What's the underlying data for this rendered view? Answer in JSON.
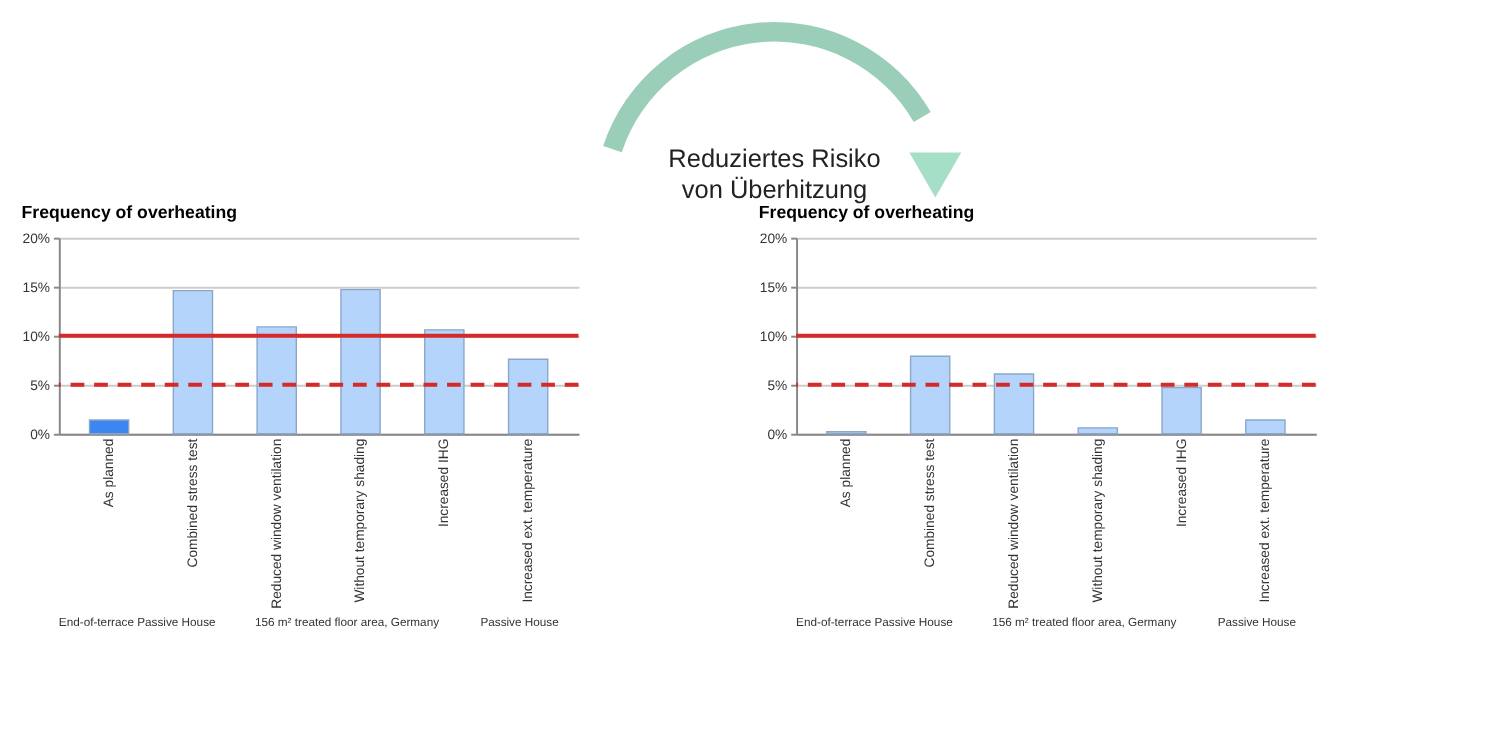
{
  "chart_data": [
    {
      "type": "other",
      "annotations": [
        "Reduziertes Risiko\nvon Überhitzung"
      ]
    },
    {
      "type": "bar",
      "title": "Frequency of overheating",
      "categories": [
        "As planned",
        "Combined stress test",
        "Reduced window ventilation",
        "Without temporary shading",
        "Increased IHG",
        "Increased ext. temperature",
        null
      ],
      "values": [
        1.4,
        14.6,
        10.9,
        14.7,
        10.6,
        7.6,
        null
      ],
      "colors": [
        "#3d85f0",
        "#b4d4fb",
        "#b4d4fb",
        "#b4d4fb",
        "#b4d4fb",
        "#b4d4fb",
        "#b4d4fb"
      ],
      "ylim": [
        0,
        20
      ],
      "yticks": [
        {
          "value": 0,
          "label": "0%"
        },
        {
          "value": 5,
          "label": "5%"
        },
        {
          "value": 10,
          "label": "10%"
        },
        {
          "value": 15,
          "label": "15%"
        },
        {
          "value": 20,
          "label": "20%"
        }
      ],
      "grid": "y",
      "ref_lines": [
        {
          "axis": "y",
          "value": 10,
          "color": "#d42a2a",
          "line_style": "solid"
        },
        {
          "axis": "y",
          "value": 5,
          "color": "#d42a2a",
          "line_style": "dashed"
        }
      ],
      "annotations": [
        "End-of-terrace Passive House",
        "156 m² treated floor area, Germany",
        "Passive House"
      ]
    },
    {
      "type": "bar",
      "title": "Frequency of overheating",
      "categories": [
        "As planned",
        "Combined stress test",
        "Reduced window ventilation",
        "Without temporary shading",
        "Increased IHG",
        "Increased ext. temperature",
        null
      ],
      "values": [
        0.2,
        7.9,
        6.1,
        0.6,
        4.7,
        1.4,
        null
      ],
      "colors": [
        "#b4d4fb",
        "#b4d4fb",
        "#b4d4fb",
        "#b4d4fb",
        "#b4d4fb",
        "#b4d4fb",
        "#b4d4fb"
      ],
      "ylim": [
        0,
        20
      ],
      "yticks": [
        {
          "value": 0,
          "label": "0%"
        },
        {
          "value": 5,
          "label": "5%"
        },
        {
          "value": 10,
          "label": "10%"
        },
        {
          "value": 15,
          "label": "15%"
        },
        {
          "value": 20,
          "label": "20%"
        }
      ],
      "grid": "y",
      "ref_lines": [
        {
          "axis": "y",
          "value": 10,
          "color": "#d42a2a",
          "line_style": "solid"
        },
        {
          "axis": "y",
          "value": 5,
          "color": "#d42a2a",
          "line_style": "dashed"
        }
      ],
      "annotations": [
        "End-of-terrace Passive House",
        "156 m² treated floor area, Germany",
        "Passive House"
      ]
    }
  ]
}
